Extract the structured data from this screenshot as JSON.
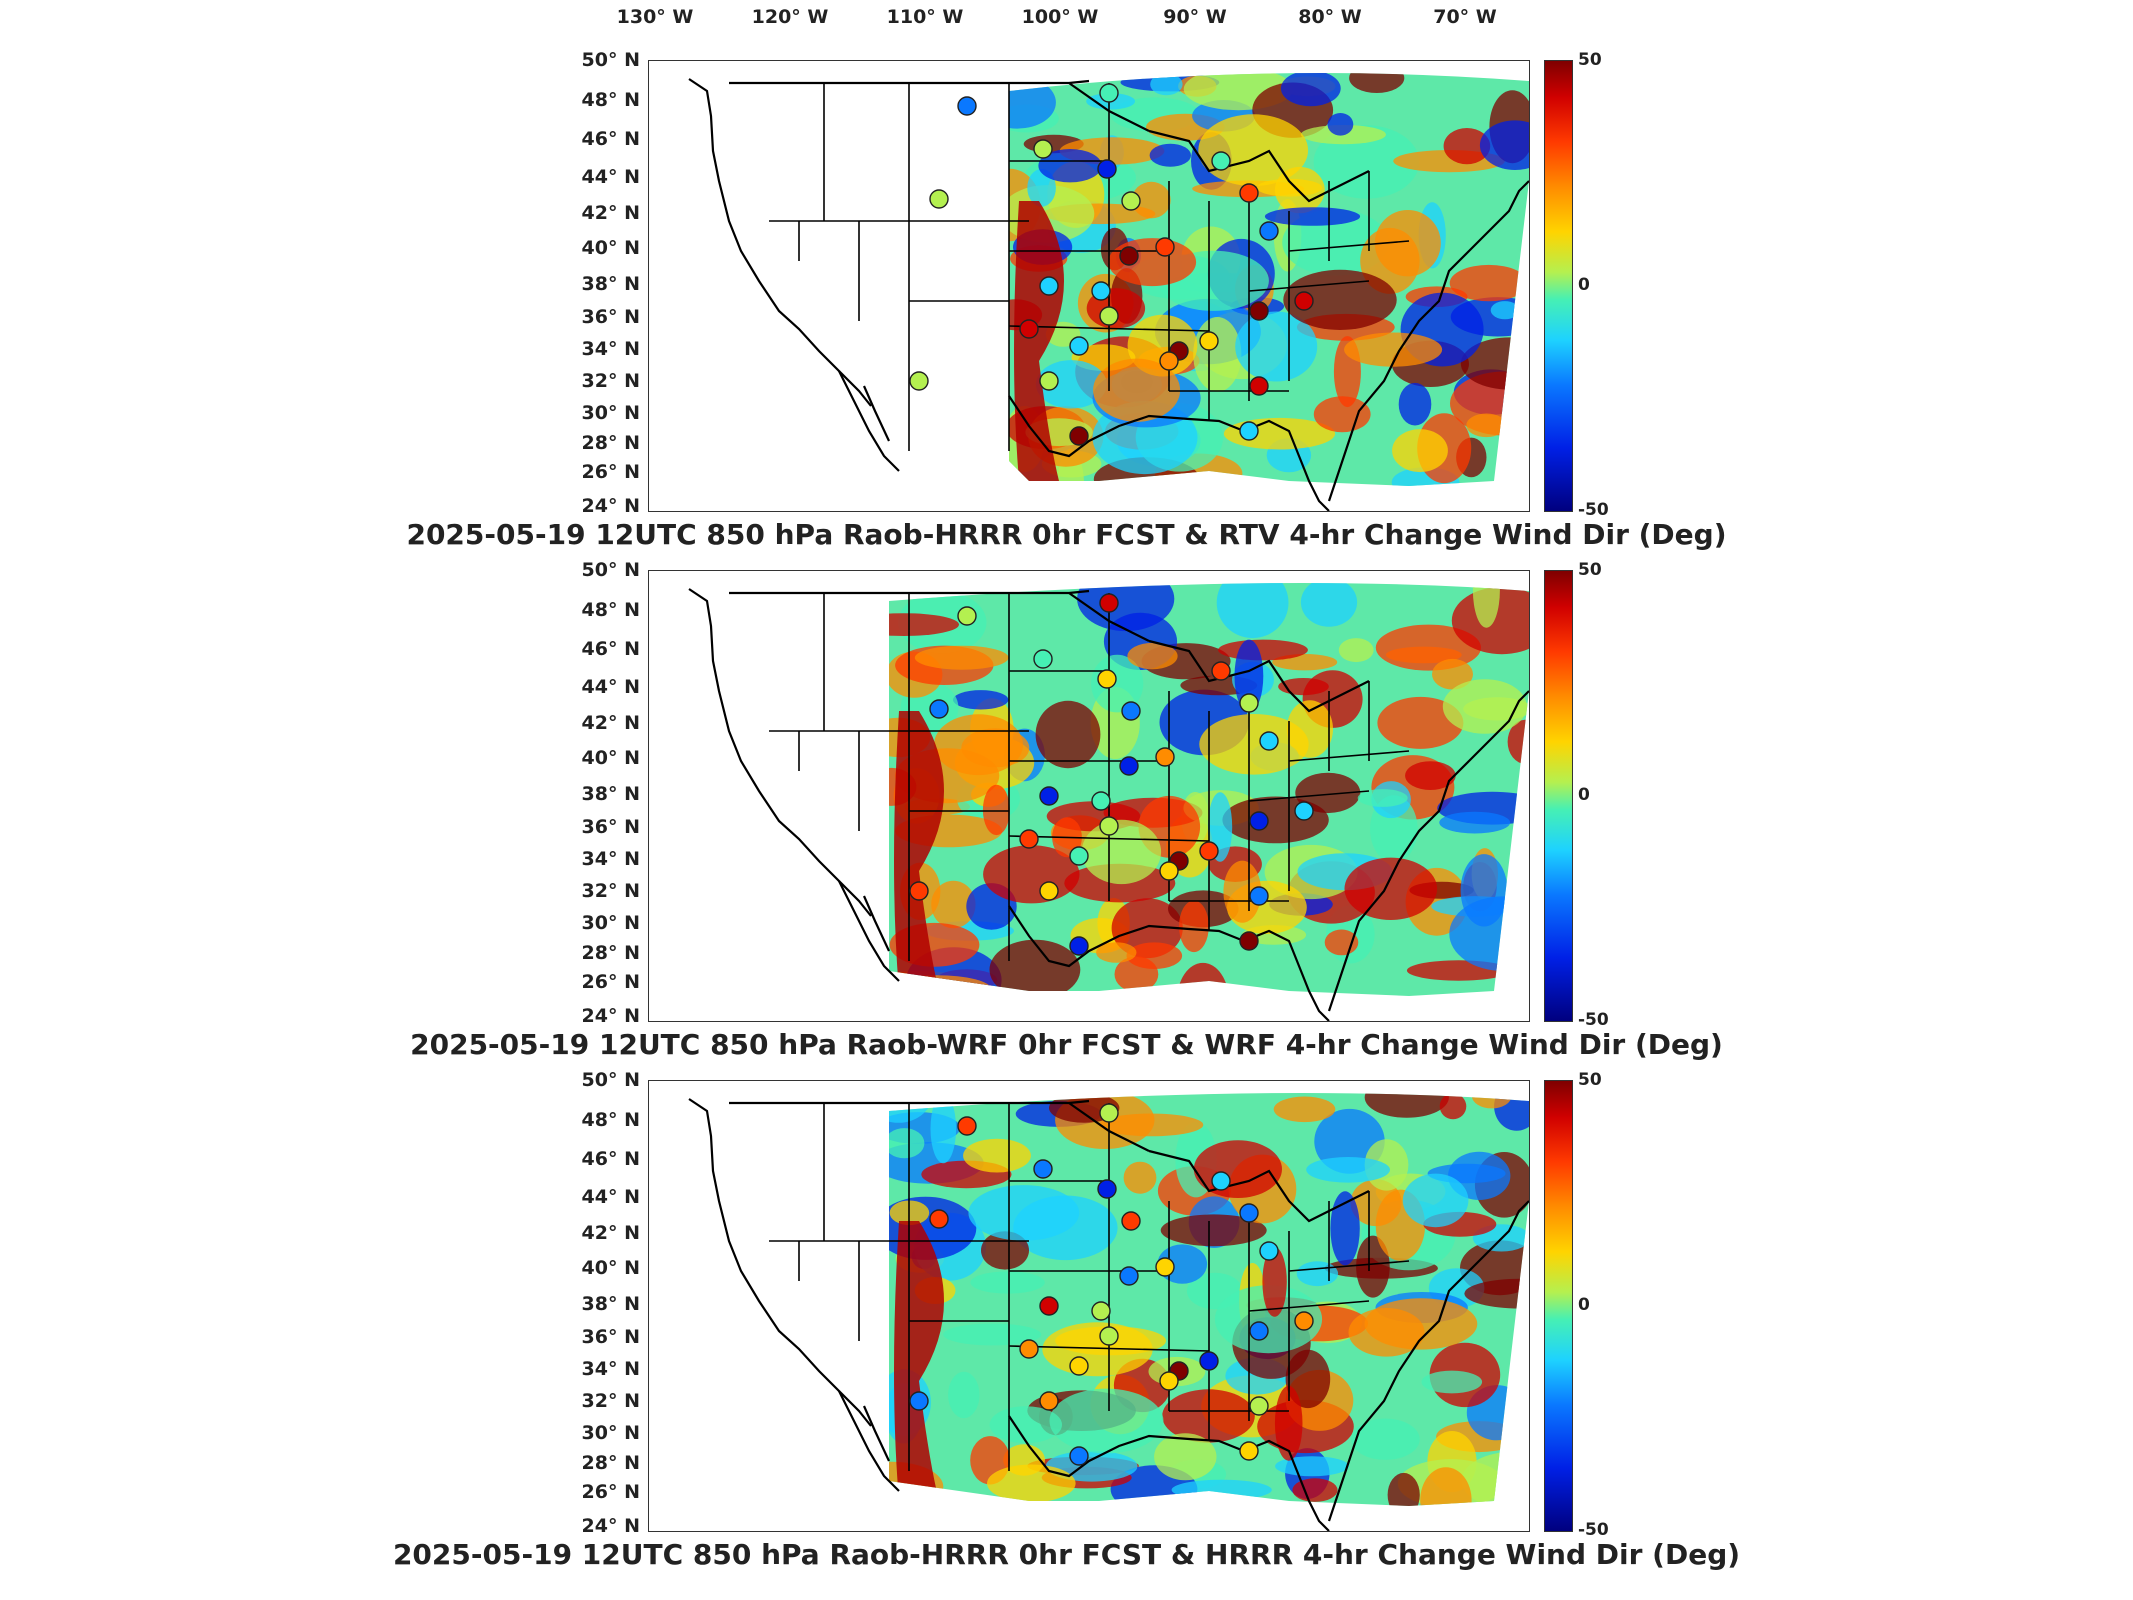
{
  "longitude_labels": [
    "130° W",
    "120° W",
    "110° W",
    "100° W",
    "90° W",
    "80° W",
    "70° W"
  ],
  "latitude_labels": [
    "50° N",
    "48° N",
    "46° N",
    "44° N",
    "42° N",
    "40° N",
    "38° N",
    "36° N",
    "34° N",
    "32° N",
    "30° N",
    "28° N",
    "26° N",
    "24° N"
  ],
  "colorbar": {
    "max": "50",
    "mid": "0",
    "min": "-50"
  },
  "panels": [
    {
      "title": "2025-05-19 12UTC 850 hPa Raob-HRRR 0hr FCST & RTV 4-hr Change Wind Dir (Deg)"
    },
    {
      "title": "2025-05-19 12UTC 850 hPa Raob-WRF 0hr FCST & WRF 4-hr Change Wind Dir (Deg)"
    },
    {
      "title": "2025-05-19 12UTC 850 hPa Raob-HRRR 0hr FCST & HRRR 4-hr Change Wind Dir (Deg)"
    }
  ]
}
